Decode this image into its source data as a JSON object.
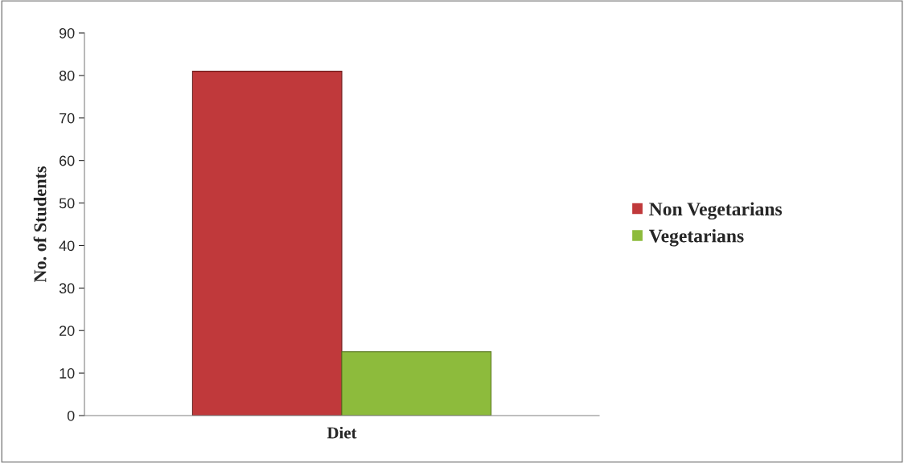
{
  "chart_data": {
    "type": "bar",
    "categories": [
      "Diet"
    ],
    "ylabel": "No. of Students",
    "series": [
      {
        "name": "Non Vegetarians",
        "color": "#c0393b",
        "values": [
          81
        ]
      },
      {
        "name": "Vegetarians",
        "color": "#8dbb3c",
        "values": [
          15
        ]
      }
    ],
    "ylim": [
      0,
      90
    ],
    "yticks": [
      0,
      10,
      20,
      30,
      40,
      50,
      60,
      70,
      80,
      90
    ],
    "grid": false,
    "legend": "right"
  }
}
